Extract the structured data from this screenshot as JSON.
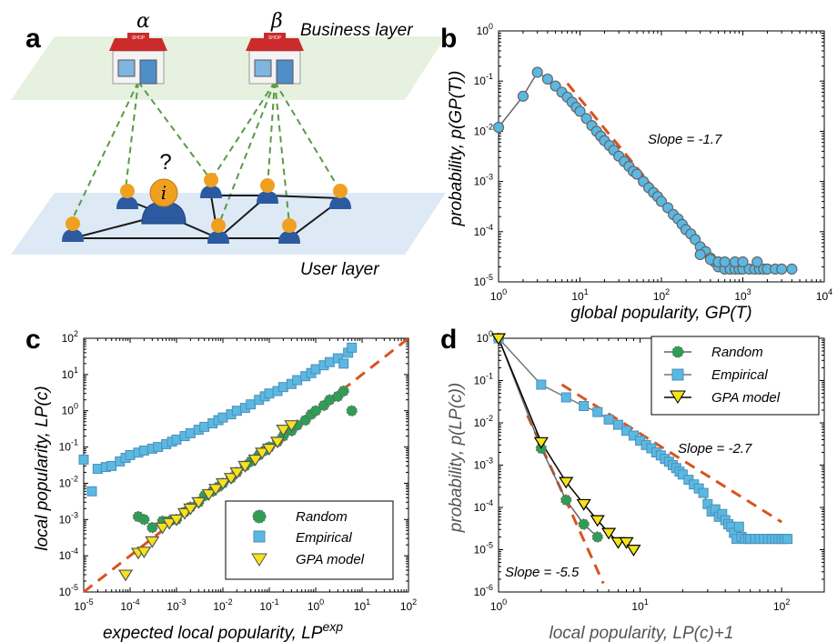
{
  "colors": {
    "trend": "#d9531e",
    "empirical": "#5bb8e3",
    "empirical_edge": "#4a90b8",
    "random": "#2e9e54",
    "gpa": "#f5e21a",
    "gray_line": "#666666",
    "business_plane": "#e6f2df",
    "user_plane": "#dde9f5",
    "user_link": "#1b1b1b",
    "follow_link": "#5a9a45"
  },
  "panel_a": {
    "label": "a",
    "business_layer": "Business layer",
    "user_layer": "User layer",
    "alpha": "α",
    "beta": "β",
    "question": "?",
    "target_user": "i",
    "shop_sign": "SHOP",
    "icons": [
      "shop-icon",
      "user-icon"
    ]
  },
  "panel_b": {
    "label": "b",
    "xlabel": "global popularity, GP(T)",
    "ylabel": "probability, p(GP(T))",
    "xticks": [
      "10^0",
      "10^1",
      "10^2",
      "10^3",
      "10^4"
    ],
    "yticks": [
      "10^-5",
      "10^-4",
      "10^-3",
      "10^-2",
      "10^-1",
      "10^0"
    ],
    "slope_text": "Slope = -1.7"
  },
  "panel_c": {
    "label": "c",
    "xlabel": "expected local popularity, LP",
    "xlabel_sup": "exp",
    "ylabel": "local popularity, LP(c)",
    "xticks": [
      "10^-5",
      "10^-4",
      "10^-3",
      "10^-2",
      "10^-1",
      "10^0",
      "10^1",
      "10^2"
    ],
    "yticks": [
      "10^-5",
      "10^-4",
      "10^-3",
      "10^-2",
      "10^-1",
      "10^0",
      "10^1",
      "10^2"
    ],
    "legend": [
      "Random",
      "Empirical",
      "GPA model"
    ]
  },
  "panel_d": {
    "label": "d",
    "xlabel": "local popularity, LP(c)+1",
    "ylabel": "probability, p(LP(c))",
    "xticks": [
      "10^0",
      "10^1",
      "10^2"
    ],
    "yticks": [
      "10^-6",
      "10^-5",
      "10^-4",
      "10^-3",
      "10^-2",
      "10^-1",
      "10^0"
    ],
    "legend": [
      "Random",
      "Empirical",
      "GPA model"
    ],
    "slope_text_1": "Slope = -2.7",
    "slope_text_2": "Slope = -5.5"
  },
  "chart_data": [
    {
      "panel": "b",
      "type": "scatter",
      "xlabel": "global popularity, GP(T)",
      "ylabel": "probability, p(GP(T))",
      "xscale": "log",
      "yscale": "log",
      "xlim": [
        1,
        10000
      ],
      "ylim": [
        1e-05,
        1
      ],
      "series": [
        {
          "marker": "circle",
          "connected": true,
          "x": [
            1,
            2,
            3,
            4,
            5,
            6,
            7,
            8,
            9,
            10,
            12,
            14,
            16,
            18,
            20,
            23,
            26,
            30,
            35,
            40,
            45,
            50,
            60,
            70,
            80,
            90,
            100,
            120,
            140,
            160,
            180,
            200,
            230,
            260,
            300,
            350,
            400,
            450,
            500,
            600,
            700,
            800,
            900,
            1000,
            1200,
            1400,
            1600,
            1800,
            2000,
            2500,
            3000,
            4000,
            300,
            400,
            500,
            600,
            800,
            1000,
            1500
          ],
          "y": [
            0.012,
            0.05,
            0.15,
            0.11,
            0.08,
            0.06,
            0.048,
            0.038,
            0.03,
            0.025,
            0.018,
            0.013,
            0.01,
            0.008,
            0.0065,
            0.0052,
            0.0042,
            0.0032,
            0.0025,
            0.002,
            0.0016,
            0.0014,
            0.001,
            0.00075,
            0.0006,
            0.0005,
            0.0004,
            0.0003,
            0.00022,
            0.00018,
            0.00014,
            0.00011,
            9e-05,
            7e-05,
            5e-05,
            4e-05,
            3e-05,
            2.5e-05,
            2e-05,
            1.8e-05,
            1.8e-05,
            1.8e-05,
            1.8e-05,
            1.8e-05,
            1.8e-05,
            1.8e-05,
            1.8e-05,
            1.8e-05,
            1.8e-05,
            1.8e-05,
            1.8e-05,
            1.8e-05,
            3.5e-05,
            2.8e-05,
            2.5e-05,
            2.5e-05,
            2.5e-05,
            2.5e-05,
            2.5e-05
          ]
        }
      ],
      "trendlines": [
        {
          "slope": -1.7,
          "x": [
            7,
            300
          ],
          "y": [
            0.09,
            5.5e-05
          ]
        }
      ],
      "annotations": [
        "Slope = -1.7"
      ]
    },
    {
      "panel": "c",
      "type": "scatter",
      "xlabel": "expected local popularity, LP^exp",
      "ylabel": "local popularity, LP(c)",
      "xscale": "log",
      "yscale": "log",
      "xlim": [
        1e-05,
        100
      ],
      "ylim": [
        1e-05,
        100
      ],
      "legend_position": "bottom-right",
      "series": [
        {
          "name": "Random",
          "marker": "circle",
          "x": [
            0.00015,
            0.0002,
            0.0003,
            0.0005,
            0.0007,
            0.001,
            0.0015,
            0.002,
            0.003,
            0.004,
            0.006,
            0.008,
            0.01,
            0.015,
            0.02,
            0.03,
            0.04,
            0.06,
            0.08,
            0.1,
            0.15,
            0.2,
            0.3,
            0.4,
            0.6,
            0.8,
            1.0,
            1.5,
            2.0,
            3.0,
            4.0,
            6.0
          ],
          "y": [
            0.0012,
            0.001,
            0.0006,
            0.0009,
            0.0009,
            0.001,
            0.0016,
            0.0022,
            0.003,
            0.0045,
            0.006,
            0.008,
            0.01,
            0.014,
            0.02,
            0.03,
            0.04,
            0.06,
            0.08,
            0.1,
            0.14,
            0.2,
            0.28,
            0.4,
            0.55,
            0.8,
            1.0,
            1.4,
            2.0,
            2.5,
            3.5,
            1.0
          ]
        },
        {
          "name": "Empirical",
          "marker": "square",
          "x": [
            1e-05,
            1.5e-05,
            2e-05,
            3e-05,
            4e-05,
            6e-05,
            8e-05,
            0.0001,
            0.00015,
            0.0002,
            0.0003,
            0.0004,
            0.0006,
            0.0008,
            0.001,
            0.0015,
            0.002,
            0.003,
            0.004,
            0.006,
            0.008,
            0.01,
            0.015,
            0.02,
            0.03,
            0.04,
            0.06,
            0.08,
            0.1,
            0.15,
            0.2,
            0.3,
            0.4,
            0.6,
            0.8,
            1.0,
            1.5,
            2.0,
            3.0,
            4.0,
            5.0,
            6.0
          ],
          "y": [
            0.045,
            0.006,
            0.025,
            0.028,
            0.03,
            0.04,
            0.05,
            0.06,
            0.07,
            0.08,
            0.09,
            0.1,
            0.12,
            0.14,
            0.16,
            0.2,
            0.24,
            0.3,
            0.36,
            0.45,
            0.55,
            0.65,
            0.8,
            1.0,
            1.2,
            1.5,
            2.0,
            2.5,
            3.0,
            3.5,
            4.5,
            5.5,
            7.0,
            9.0,
            11.0,
            14.0,
            18.0,
            22.0,
            28.0,
            20.0,
            40.0,
            55.0
          ]
        },
        {
          "name": "GPA model",
          "marker": "triangle-down",
          "x": [
            8e-05,
            0.00015,
            0.0002,
            0.0003,
            0.0005,
            0.0007,
            0.001,
            0.0015,
            0.002,
            0.003,
            0.005,
            0.007,
            0.01,
            0.015,
            0.02,
            0.03,
            0.05,
            0.07,
            0.1,
            0.15,
            0.2,
            0.3
          ],
          "y": [
            3e-05,
            0.00012,
            0.00013,
            0.00025,
            0.0006,
            0.0008,
            0.001,
            0.0015,
            0.002,
            0.003,
            0.005,
            0.007,
            0.01,
            0.014,
            0.02,
            0.03,
            0.045,
            0.07,
            0.09,
            0.14,
            0.3,
            0.4
          ]
        }
      ],
      "trendlines": [
        {
          "slope": 1,
          "x": [
            1e-05,
            100
          ],
          "y": [
            1e-05,
            100
          ]
        }
      ]
    },
    {
      "panel": "d",
      "type": "line",
      "xlabel": "local popularity, LP(c)+1",
      "ylabel": "probability, p(LP(c))",
      "xscale": "log",
      "yscale": "log",
      "xlim": [
        1,
        200
      ],
      "ylim": [
        1e-06,
        1
      ],
      "legend_position": "top-right",
      "series": [
        {
          "name": "Random",
          "marker": "circle",
          "x": [
            1,
            2,
            3,
            4,
            5
          ],
          "y": [
            1.0,
            0.0025,
            0.00015,
            4e-05,
            2e-05
          ]
        },
        {
          "name": "Empirical",
          "marker": "square",
          "x": [
            1,
            2,
            3,
            4,
            5,
            6,
            7,
            8,
            9,
            10,
            11,
            12,
            13,
            14,
            15,
            16,
            17,
            18,
            19,
            20,
            22,
            24,
            26,
            28,
            30,
            32,
            34,
            36,
            38,
            40,
            42,
            44,
            46,
            48,
            50,
            52,
            55,
            58,
            60,
            65,
            70,
            75,
            80,
            85,
            90,
            95,
            100,
            105,
            110
          ],
          "y": [
            1.0,
            0.08,
            0.04,
            0.025,
            0.018,
            0.012,
            0.009,
            0.0065,
            0.005,
            0.0038,
            0.003,
            0.0025,
            0.002,
            0.0017,
            0.0014,
            0.0012,
            0.001,
            0.00085,
            0.0007,
            0.0006,
            0.00045,
            0.00035,
            0.00028,
            0.00022,
            0.00012,
            8e-05,
            9e-05,
            6e-05,
            7e-05,
            5e-05,
            4e-05,
            3.5e-05,
            2.5e-05,
            1.8e-05,
            3.5e-05,
            2e-05,
            1.8e-05,
            1.8e-05,
            1.8e-05,
            1.8e-05,
            1.8e-05,
            1.8e-05,
            1.8e-05,
            1.8e-05,
            1.8e-05,
            1.8e-05,
            1.8e-05,
            1.8e-05,
            1.8e-05
          ]
        },
        {
          "name": "GPA model",
          "marker": "triangle-down",
          "x": [
            1,
            2,
            3,
            4,
            5,
            6,
            7,
            8,
            9
          ],
          "y": [
            1.0,
            0.0035,
            0.0004,
            0.00012,
            5e-05,
            2.5e-05,
            1.5e-05,
            1.5e-05,
            1e-05
          ]
        }
      ],
      "trendlines": [
        {
          "slope": -2.7,
          "x": [
            2.8,
            100
          ],
          "y": [
            0.08,
            4.5e-05
          ]
        },
        {
          "slope": -5.5,
          "x": [
            1.6,
            5.5
          ],
          "y": [
            0.015,
            1.6e-06
          ]
        }
      ],
      "annotations": [
        "Slope = -2.7",
        "Slope = -5.5"
      ]
    }
  ]
}
